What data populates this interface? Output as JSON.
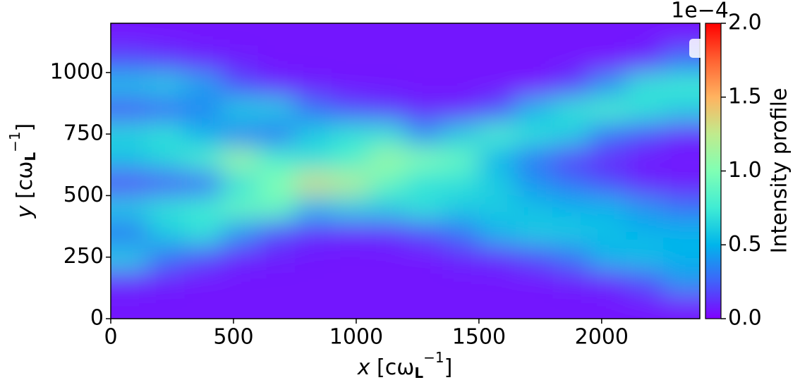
{
  "chart_data": {
    "type": "heatmap",
    "x": [
      75,
      225,
      375,
      525,
      675,
      825,
      975,
      1125,
      1275,
      1425,
      1575,
      1725,
      1875,
      2025,
      2175,
      2325
    ],
    "y": [
      50,
      150,
      250,
      350,
      450,
      550,
      650,
      750,
      850,
      950,
      1050,
      1150
    ],
    "z": [
      [
        0.05,
        0.1,
        0.6,
        0.3,
        0.6,
        0.15,
        0.55,
        0.65,
        0.2,
        0.55,
        0.2,
        0.05
      ],
      [
        0.05,
        0.08,
        0.3,
        0.6,
        0.7,
        0.2,
        0.65,
        0.7,
        0.25,
        0.6,
        0.15,
        0.05
      ],
      [
        0.05,
        0.05,
        0.2,
        0.7,
        0.75,
        0.25,
        0.8,
        0.5,
        0.35,
        0.45,
        0.1,
        0.05
      ],
      [
        0.05,
        0.05,
        0.1,
        0.4,
        0.9,
        0.7,
        1.1,
        0.35,
        0.6,
        0.2,
        0.08,
        0.05
      ],
      [
        0.05,
        0.05,
        0.08,
        0.2,
        0.9,
        1.0,
        0.8,
        0.3,
        0.6,
        0.1,
        0.05,
        0.05
      ],
      [
        0.05,
        0.05,
        0.06,
        0.12,
        0.5,
        1.3,
        0.7,
        0.6,
        0.3,
        0.08,
        0.05,
        0.05
      ],
      [
        0.05,
        0.05,
        0.05,
        0.1,
        0.6,
        1.2,
        0.8,
        0.7,
        0.2,
        0.06,
        0.05,
        0.05
      ],
      [
        0.05,
        0.05,
        0.05,
        0.12,
        0.6,
        0.9,
        1.1,
        0.7,
        0.15,
        0.06,
        0.05,
        0.05
      ],
      [
        0.05,
        0.05,
        0.05,
        0.2,
        0.7,
        0.7,
        1.0,
        0.4,
        0.1,
        0.05,
        0.05,
        0.05
      ],
      [
        0.05,
        0.05,
        0.1,
        0.3,
        0.6,
        0.7,
        0.9,
        0.6,
        0.1,
        0.05,
        0.05,
        0.05
      ],
      [
        0.05,
        0.05,
        0.12,
        0.5,
        0.6,
        0.6,
        0.5,
        0.8,
        0.2,
        0.05,
        0.05,
        0.05
      ],
      [
        0.05,
        0.05,
        0.2,
        0.6,
        0.55,
        0.4,
        0.3,
        0.7,
        0.5,
        0.05,
        0.05,
        0.05
      ],
      [
        0.05,
        0.08,
        0.3,
        0.6,
        0.5,
        0.3,
        0.15,
        0.6,
        0.7,
        0.15,
        0.05,
        0.05
      ],
      [
        0.05,
        0.1,
        0.5,
        0.55,
        0.5,
        0.2,
        0.1,
        0.3,
        0.8,
        0.4,
        0.05,
        0.05
      ],
      [
        0.05,
        0.2,
        0.55,
        0.5,
        0.4,
        0.1,
        0.06,
        0.2,
        0.7,
        0.7,
        0.1,
        0.05
      ],
      [
        0.05,
        0.4,
        0.5,
        0.5,
        0.3,
        0.08,
        0.05,
        0.1,
        0.6,
        0.75,
        0.3,
        0.05
      ]
    ],
    "xlim": [
      0,
      2400
    ],
    "ylim": [
      0,
      1200
    ],
    "xticks": [
      0,
      500,
      1000,
      1500,
      2000
    ],
    "yticks": [
      0,
      250,
      500,
      750,
      1000
    ],
    "xlabel": [
      "x",
      " [cω",
      "L",
      "−1",
      "]"
    ],
    "ylabel": [
      "y",
      " [cω",
      "L",
      "−1",
      "]"
    ],
    "clim": [
      0,
      2
    ],
    "colormap": [
      "#8000ff",
      "#4062fa",
      "#00b5eb",
      "#40ecd4",
      "#80ffb4",
      "#c0eb8d",
      "#ffb360",
      "#ff6232",
      "#ff0000"
    ],
    "colorbar_ticks": [
      {
        "value": 0,
        "label": "0.0"
      },
      {
        "value": 0.5,
        "label": "0.5"
      },
      {
        "value": 1,
        "label": "1.0"
      },
      {
        "value": 1.5,
        "label": "1.5"
      },
      {
        "value": 2,
        "label": "2.0"
      }
    ],
    "colorbar_offset": "1e−4",
    "colorbar_label": "Intensity profile"
  }
}
